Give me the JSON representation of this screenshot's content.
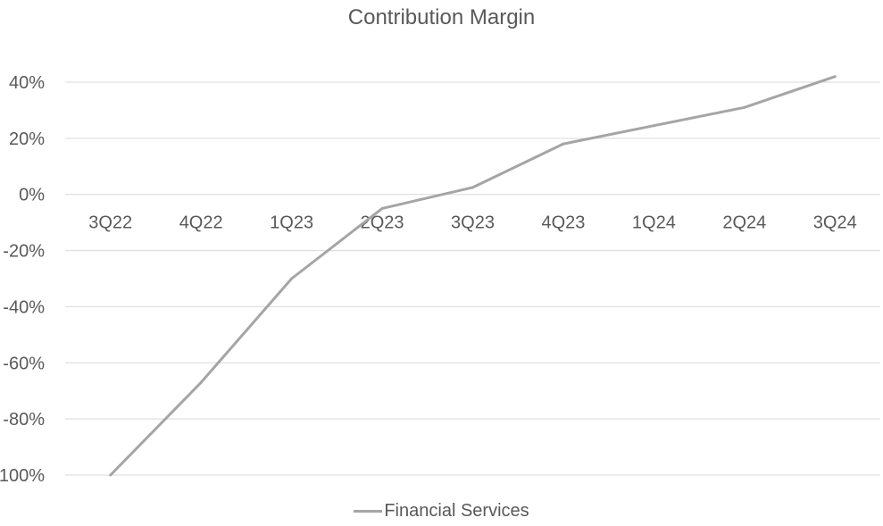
{
  "chart_data": {
    "type": "line",
    "title": "Contribution Margin",
    "categories": [
      "3Q22",
      "4Q22",
      "1Q23",
      "2Q23",
      "3Q23",
      "4Q23",
      "1Q24",
      "2Q24",
      "3Q24"
    ],
    "y_tick_labels": [
      "40%",
      "20%",
      "0%",
      "-20%",
      "-40%",
      "-60%",
      "-80%",
      "100%"
    ],
    "series": [
      {
        "name": "Financial Services",
        "values": [
          -100,
          -67,
          -30,
          -5,
          2.5,
          18,
          24.5,
          31,
          42
        ]
      }
    ],
    "ylim": [
      -100,
      40
    ],
    "ystep": 20,
    "grid": true,
    "legend_position": "bottom",
    "colors": {
      "series": "#a5a5a5",
      "grid": "#d9d9d9",
      "text": "#595959"
    }
  }
}
